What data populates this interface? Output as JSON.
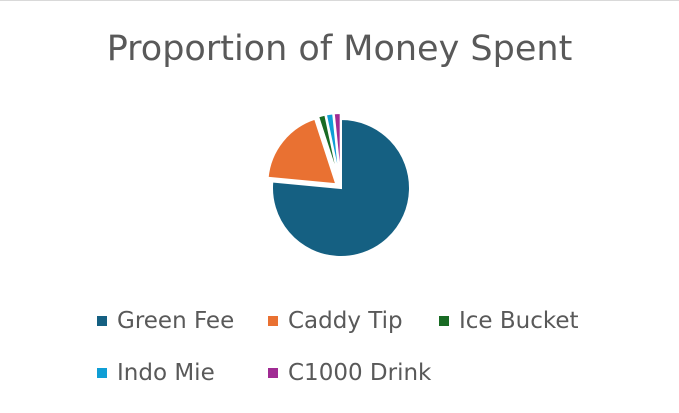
{
  "chart_data": {
    "type": "pie",
    "title": "Proportion of Money Spent",
    "legend_position": "bottom",
    "categories": [
      "Green Fee",
      "Caddy Tip",
      "Ice Bucket",
      "Indo Mie",
      "C1000 Drink"
    ],
    "values": [
      76.5,
      18.5,
      1.7,
      1.7,
      1.6
    ],
    "colors": [
      "#156082",
      "#e97132",
      "#196b24",
      "#0f9ed5",
      "#a02b93"
    ],
    "exploded_slices": [
      1,
      2,
      3,
      4
    ]
  }
}
